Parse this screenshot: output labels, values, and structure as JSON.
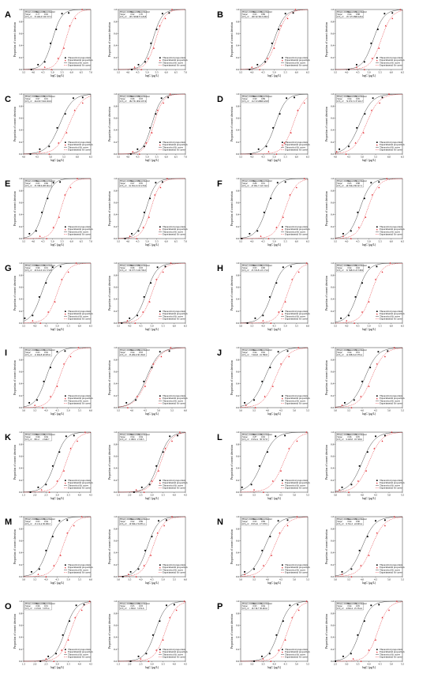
{
  "figure": {
    "panels": [
      "A",
      "B",
      "C",
      "D",
      "E",
      "F",
      "G",
      "H",
      "I",
      "J",
      "K",
      "L",
      "M",
      "N",
      "O",
      "P"
    ]
  },
  "common": {
    "ylabel": "Proportion of correct detection",
    "xlabel": "logC (μg/L)",
    "legend": [
      "Theoretical proportion",
      "Experimental proportion",
      "Theoretical fit curve",
      "Experimental fit curve"
    ],
    "table_header": [
      "Binary mixture",
      "Theoretical",
      "Experimental"
    ],
    "table_row1": "Slope",
    "table_row2": "OT₅₀/r²"
  },
  "colors": {
    "theoretical": "#000000",
    "experimental": "#e0181f",
    "fit_theoretical": "#333333"
  },
  "chart_data": [
    {
      "panel": "A",
      "type": "scatter",
      "charts": [
        {
          "xticks": [
            "3.5",
            "4.0",
            "4.5",
            "5.0",
            "5.5",
            "6.0",
            "6.5",
            "7.0"
          ],
          "xmin": 3.5,
          "xmax": 7.0,
          "t50": 5.0,
          "e50": 5.7,
          "table": [
            "0.77",
            "0.92",
            "55 404.9",
            "319 537.5"
          ]
        },
        {
          "xticks": [
            "3.5",
            "4.0",
            "4.5",
            "5.0",
            "5.5",
            "6.0",
            "6.5",
            "7.0"
          ],
          "xmin": 3.5,
          "xmax": 7.0,
          "t50": 5.3,
          "e50": 5.45,
          "table": [
            "0.92",
            "1.05",
            "195 748.6",
            "173 226.8"
          ]
        }
      ]
    },
    {
      "panel": "B",
      "type": "scatter",
      "charts": [
        {
          "xticks": [
            "3.5",
            "4.0",
            "4.5",
            "5.0",
            "5.5",
            "6.0",
            "6.5"
          ],
          "xmin": 3.5,
          "xmax": 6.5,
          "t50": 5.0,
          "e50": 5.1,
          "table": [
            "0.93",
            "0.86",
            "100 547.9",
            "115 496.3"
          ]
        },
        {
          "xticks": [
            "3.5",
            "4.0",
            "4.5",
            "5.0",
            "5.5",
            "6.0",
            "6.5"
          ],
          "xmin": 3.5,
          "xmax": 6.5,
          "t50": 5.2,
          "e50": 5.55,
          "table": [
            "0.94",
            "0.88",
            "157 473.3",
            "366 426.2"
          ]
        }
      ]
    },
    {
      "panel": "C",
      "type": "scatter",
      "charts": [
        {
          "xticks": [
            "4.0",
            "4.5",
            "5.0",
            "5.5",
            "6.0",
            "6.5"
          ],
          "xmin": 4.0,
          "xmax": 6.5,
          "t50": 5.35,
          "e50": 5.7,
          "table": [
            "0.97",
            "0.91",
            "244 027.1",
            "524 262.9"
          ]
        },
        {
          "xticks": [
            "3.5",
            "4.0",
            "4.5",
            "5.0",
            "5.5",
            "6.0",
            "6.5",
            "7.0"
          ],
          "xmin": 3.5,
          "xmax": 7.0,
          "t50": 5.25,
          "e50": 5.35,
          "table": [
            "0.96",
            "0.93",
            "182 701.3",
            "192 297.6"
          ]
        }
      ]
    },
    {
      "panel": "D",
      "type": "scatter",
      "charts": [
        {
          "xticks": [
            "3.5",
            "4.0",
            "4.5",
            "5.0",
            "5.5",
            "6.0",
            "6.5"
          ],
          "xmin": 3.5,
          "xmax": 6.5,
          "t50": 5.05,
          "e50": 5.85,
          "table": [
            "0.90",
            "0.89",
            "112 313.0",
            "690 420.8"
          ]
        },
        {
          "xticks": [
            "4.0",
            "4.5",
            "5.0",
            "5.5",
            "6.0",
            "6.5"
          ],
          "xmin": 4.0,
          "xmax": 6.5,
          "t50": 4.9,
          "e50": 5.15,
          "table": [
            "0.94",
            "0.95",
            "74 072.3",
            "137 461.7"
          ]
        }
      ]
    },
    {
      "panel": "E",
      "type": "scatter",
      "charts": [
        {
          "xticks": [
            "3.5",
            "4.0",
            "4.5",
            "5.0",
            "5.5",
            "6.0",
            "6.5",
            "7.0"
          ],
          "xmin": 3.5,
          "xmax": 7.0,
          "t50": 4.55,
          "e50": 5.45,
          "table": [
            "0.95",
            "0.96",
            "35 768.6",
            "283 961.3"
          ]
        },
        {
          "xticks": [
            "3.5",
            "4.0",
            "4.5",
            "5.0",
            "5.5",
            "6.0",
            "6.5",
            "7.0"
          ],
          "xmin": 3.5,
          "xmax": 7.0,
          "t50": 4.95,
          "e50": 5.2,
          "table": [
            "0.97",
            "0.95",
            "91 831.0",
            "153 276.9"
          ]
        }
      ]
    },
    {
      "panel": "F",
      "type": "scatter",
      "charts": [
        {
          "xticks": [
            "3.5",
            "4.0",
            "4.5",
            "5.0",
            "5.5",
            "6.0",
            "6.5"
          ],
          "xmin": 3.5,
          "xmax": 6.5,
          "t50": 4.65,
          "e50": 5.5,
          "table": [
            "0.89",
            "0.91",
            "47 991.7",
            "313 742.5"
          ]
        },
        {
          "xticks": [
            "3.5",
            "4.0",
            "4.5",
            "5.0",
            "5.5",
            "6.0",
            "6.5"
          ],
          "xmin": 3.5,
          "xmax": 6.5,
          "t50": 4.6,
          "e50": 4.95,
          "table": [
            "0.95",
            "0.88",
            "40 356.2",
            "89 527.3"
          ]
        }
      ]
    },
    {
      "panel": "G",
      "type": "scatter",
      "charts": [
        {
          "xticks": [
            "3.5",
            "4.0",
            "4.5",
            "5.0",
            "5.5",
            "6.0",
            "6.5"
          ],
          "xmin": 3.5,
          "xmax": 6.5,
          "t50": 4.3,
          "e50": 5.0,
          "table": [
            "0.96",
            "0.91",
            "20 611.0",
            "101 374.8"
          ]
        },
        {
          "xticks": [
            "3.5",
            "4.0",
            "4.5",
            "5.0",
            "5.5",
            "6.0",
            "6.5"
          ],
          "xmin": 3.5,
          "xmax": 6.5,
          "t50": 4.75,
          "e50": 5.0,
          "table": [
            "0.96",
            "0.93",
            "56 377.3",
            "100 766.5"
          ]
        }
      ]
    },
    {
      "panel": "H",
      "type": "scatter",
      "charts": [
        {
          "xticks": [
            "3.0",
            "3.5",
            "4.0",
            "4.5",
            "5.0",
            "5.5",
            "6.0"
          ],
          "xmin": 3.0,
          "xmax": 6.0,
          "t50": 4.4,
          "e50": 5.1,
          "table": [
            "0.93",
            "0.90",
            "25 374.8",
            "125 172.0"
          ]
        },
        {
          "xticks": [
            "3.5",
            "4.0",
            "4.5",
            "5.0",
            "5.5",
            "6.0",
            "6.5"
          ],
          "xmin": 3.5,
          "xmax": 6.5,
          "t50": 4.5,
          "e50": 5.1,
          "table": [
            "0.94",
            "0.92",
            "31 568.9",
            "125 338.0"
          ]
        }
      ]
    },
    {
      "panel": "I",
      "type": "scatter",
      "charts": [
        {
          "xticks": [
            "3.0",
            "3.5",
            "4.0",
            "4.5",
            "5.0",
            "5.5",
            "6.0"
          ],
          "xmin": 3.0,
          "xmax": 6.0,
          "t50": 4.0,
          "e50": 4.6,
          "table": [
            "0.93",
            "0.92",
            "11 064.8",
            "40 005.6"
          ]
        },
        {
          "xticks": [
            "3.5",
            "4.0",
            "4.5",
            "5.0",
            "5.5",
            "6.0"
          ],
          "xmin": 3.5,
          "xmax": 6.0,
          "t50": 4.55,
          "e50": 4.6,
          "table": [
            "0.94",
            "0.93",
            "35 282.6",
            "38 159.8"
          ]
        }
      ]
    },
    {
      "panel": "J",
      "type": "scatter",
      "charts": [
        {
          "xticks": [
            "3.0",
            "3.5",
            "4.0",
            "4.5",
            "5.0",
            "5.5"
          ],
          "xmin": 3.0,
          "xmax": 5.5,
          "t50": 3.9,
          "e50": 4.3,
          "table": [
            "0.94",
            "0.92",
            "7 616.8",
            "19 780.8"
          ]
        },
        {
          "xticks": [
            "3.0",
            "3.5",
            "4.0",
            "4.5",
            "5.0",
            "5.5"
          ],
          "xmin": 3.0,
          "xmax": 5.5,
          "t50": 4.1,
          "e50": 4.35,
          "table": [
            "0.94",
            "0.91",
            "12 938.9",
            "22 379.4"
          ]
        }
      ]
    },
    {
      "panel": "K",
      "type": "scatter",
      "charts": [
        {
          "xticks": [
            "1.5",
            "2.0",
            "2.5",
            "3.0",
            "3.5",
            "4.0",
            "4.5"
          ],
          "xmin": 1.5,
          "xmax": 4.5,
          "t50": 2.9,
          "e50": 3.4,
          "table": [
            "0.96",
            "0.94",
            "801.2",
            "2 649.7"
          ]
        },
        {
          "xticks": [
            "1.5",
            "2.0",
            "2.5",
            "3.0",
            "3.5",
            "4.0",
            "4.5"
          ],
          "xmin": 1.5,
          "xmax": 4.5,
          "t50": 3.3,
          "e50": 3.4,
          "table": [
            "0.94",
            "0.94",
            "2 180.9",
            "2 530.5"
          ]
        }
      ]
    },
    {
      "panel": "L",
      "type": "scatter",
      "charts": [
        {
          "xticks": [
            "3.0",
            "3.5",
            "4.0",
            "4.5",
            "5.0",
            "5.5"
          ],
          "xmin": 3.0,
          "xmax": 5.5,
          "t50": 3.8,
          "e50": 4.6,
          "table": [
            "0.87",
            "0.92",
            "6 952.4",
            "38 727.8"
          ]
        },
        {
          "xticks": [
            "3.0",
            "3.5",
            "4.0",
            "4.5",
            "5.0",
            "5.5"
          ],
          "xmin": 3.0,
          "xmax": 5.5,
          "t50": 4.0,
          "e50": 4.25,
          "table": [
            "0.96",
            "0.95",
            "9 220.8",
            "18 728.6"
          ]
        }
      ]
    },
    {
      "panel": "M",
      "type": "scatter",
      "charts": [
        {
          "xticks": [
            "3.0",
            "3.5",
            "4.0",
            "4.5",
            "5.0",
            "5.5",
            "6.0"
          ],
          "xmin": 3.0,
          "xmax": 6.0,
          "t50": 4.1,
          "e50": 4.75,
          "table": [
            "0.93",
            "0.94",
            "13 131.4",
            "58 209.3"
          ]
        },
        {
          "xticks": [
            "3.0",
            "3.5",
            "4.0",
            "4.5",
            "5.0",
            "5.5",
            "6.0"
          ],
          "xmin": 3.0,
          "xmax": 6.0,
          "t50": 4.3,
          "e50": 4.55,
          "table": [
            "0.92",
            "0.89",
            "19 509.2",
            "35 855.1"
          ]
        }
      ]
    },
    {
      "panel": "N",
      "type": "scatter",
      "charts": [
        {
          "xticks": [
            "3.0",
            "3.5",
            "4.0",
            "4.5",
            "5.0",
            "5.5"
          ],
          "xmin": 3.0,
          "xmax": 5.5,
          "t50": 3.9,
          "e50": 4.25,
          "table": [
            "0.95",
            "0.89",
            "8 051.6",
            "17 578.5"
          ]
        },
        {
          "xticks": [
            "3.0",
            "3.5",
            "4.0",
            "4.5",
            "5.0",
            "5.5"
          ],
          "xmin": 3.0,
          "xmax": 5.5,
          "t50": 4.0,
          "e50": 4.35,
          "table": [
            "0.94",
            "0.90",
            "9 761.3",
            "22 003.4"
          ]
        }
      ]
    },
    {
      "panel": "O",
      "type": "scatter",
      "charts": [
        {
          "xticks": [
            "1.5",
            "2.0",
            "2.5",
            "3.0",
            "3.5",
            "4.0",
            "4.5"
          ],
          "xmin": 1.5,
          "xmax": 4.5,
          "t50": 3.35,
          "e50": 3.6,
          "table": [
            "0.96",
            "0.91",
            "2 233.6",
            "3 975.4"
          ]
        },
        {
          "xticks": [
            "1.5",
            "2.0",
            "2.5",
            "3.0",
            "3.5",
            "4.0",
            "4.5"
          ],
          "xmin": 1.5,
          "xmax": 4.5,
          "t50": 3.15,
          "e50": 3.6,
          "table": [
            "0.95",
            "0.93",
            "1 382.0",
            "3 972.6"
          ]
        }
      ]
    },
    {
      "panel": "P",
      "type": "scatter",
      "charts": [
        {
          "xticks": [
            "2.5",
            "3.0",
            "3.5",
            "4.0",
            "4.5",
            "5.0",
            "5.5"
          ],
          "xmin": 2.5,
          "xmax": 5.5,
          "t50": 4.2,
          "e50": 4.6,
          "table": [
            "0.93",
            "0.94",
            "16 716.7",
            "38 463.0"
          ]
        },
        {
          "xticks": [
            "2.5",
            "3.0",
            "3.5",
            "4.0",
            "4.5",
            "5.0",
            "5.5"
          ],
          "xmin": 2.5,
          "xmax": 5.5,
          "t50": 3.6,
          "e50": 4.4,
          "table": [
            "0.94",
            "0.95",
            "4 062.4",
            "25 334.4"
          ]
        }
      ]
    }
  ]
}
